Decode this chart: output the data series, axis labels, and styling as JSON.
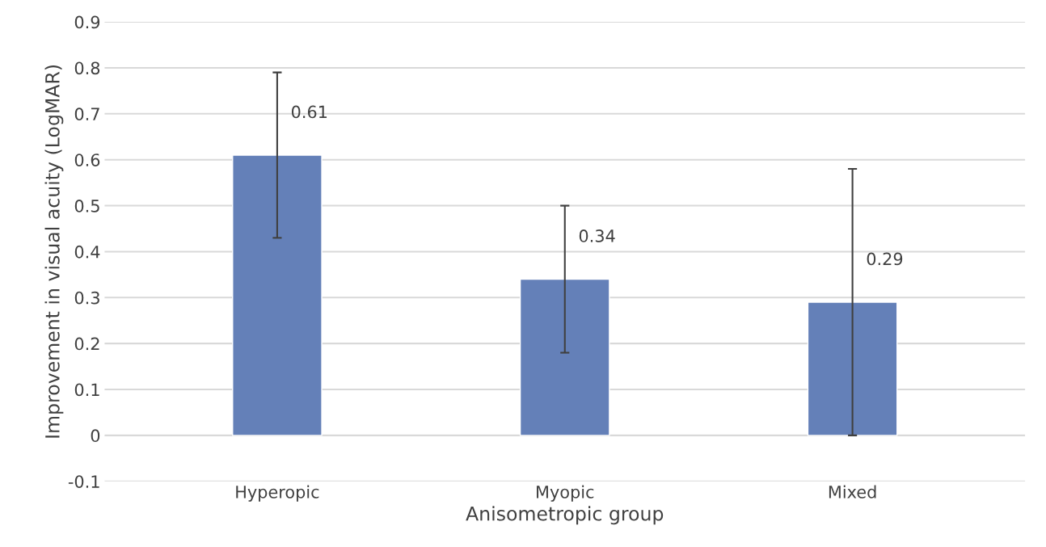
{
  "chart_data": {
    "type": "bar",
    "xlabel": "Anisometropic group",
    "ylabel": "Improvement in visual acuity (LogMAR)",
    "categories": [
      "Hyperopic",
      "Myopic",
      "Mixed"
    ],
    "values": [
      0.61,
      0.34,
      0.29
    ],
    "errors": [
      0.18,
      0.16,
      0.29
    ],
    "color": "#6480b8",
    "ylim": [
      -0.1,
      0.9
    ],
    "yticks": [
      -0.1,
      0,
      0.1,
      0.2,
      0.3,
      0.4,
      0.5,
      0.6,
      0.7,
      0.8,
      0.9
    ],
    "grid": "y",
    "data_labels": true
  }
}
